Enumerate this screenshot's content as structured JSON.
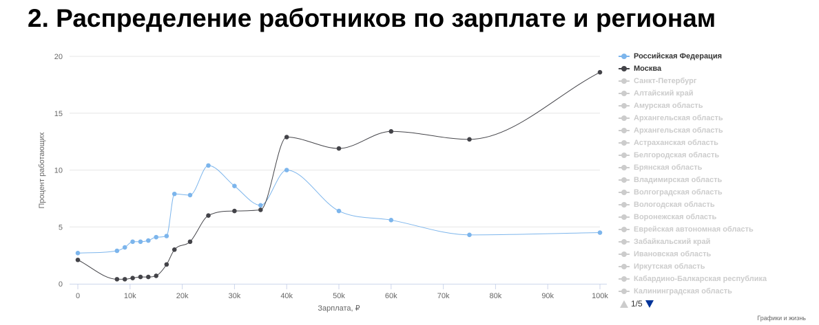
{
  "title": "2. Распределение работников по зарплате и регионам",
  "credit": "Графики и жизнь",
  "legend_nav": {
    "page": "1/5"
  },
  "chart_data": {
    "type": "line",
    "title": "",
    "xlabel": "Зарплата, ₽",
    "ylabel": "Процент работающих",
    "xlim": [
      0,
      100000
    ],
    "ylim": [
      0,
      20
    ],
    "x_ticks": [
      0,
      10000,
      20000,
      30000,
      40000,
      50000,
      60000,
      70000,
      80000,
      90000,
      100000
    ],
    "x_tick_labels": [
      "0",
      "10k",
      "20k",
      "30k",
      "40k",
      "50k",
      "60k",
      "70k",
      "80k",
      "90k",
      "100k"
    ],
    "y_ticks": [
      0,
      5,
      10,
      15,
      20
    ],
    "y_tick_labels": [
      "0",
      "5",
      "10",
      "15",
      "20"
    ],
    "grid": "horizontal",
    "legend_position": "right",
    "series": [
      {
        "name": "Российская Федерация",
        "color": "#7cb5ec",
        "visible": true,
        "x": [
          0,
          7500,
          9000,
          10500,
          12000,
          13500,
          15000,
          17000,
          18500,
          21500,
          25000,
          30000,
          35000,
          40000,
          50000,
          60000,
          75000,
          100000
        ],
        "y": [
          2.7,
          2.9,
          3.2,
          3.7,
          3.7,
          3.8,
          4.1,
          4.2,
          7.9,
          7.8,
          10.4,
          8.6,
          6.9,
          10.0,
          6.4,
          5.6,
          4.3,
          4.5
        ]
      },
      {
        "name": "Москва",
        "color": "#434348",
        "visible": true,
        "x": [
          0,
          7500,
          9000,
          10500,
          12000,
          13500,
          15000,
          17000,
          18500,
          21500,
          25000,
          30000,
          35000,
          40000,
          50000,
          60000,
          75000,
          100000
        ],
        "y": [
          2.1,
          0.4,
          0.4,
          0.5,
          0.6,
          0.6,
          0.7,
          1.7,
          3.0,
          3.7,
          6.0,
          6.4,
          6.5,
          12.9,
          11.9,
          13.4,
          12.7,
          18.6
        ]
      }
    ],
    "legend": [
      {
        "name": "Российская Федерация",
        "active": true,
        "color": "#7cb5ec"
      },
      {
        "name": "Москва",
        "active": true,
        "color": "#434348"
      },
      {
        "name": "Санкт-Петербург",
        "active": false,
        "color": "#cccccc"
      },
      {
        "name": "Алтайский край",
        "active": false,
        "color": "#cccccc"
      },
      {
        "name": "Амурская область",
        "active": false,
        "color": "#cccccc"
      },
      {
        "name": "Архангельская область",
        "active": false,
        "color": "#cccccc"
      },
      {
        "name": "Архангельская область",
        "active": false,
        "color": "#cccccc"
      },
      {
        "name": "Астраханская область",
        "active": false,
        "color": "#cccccc"
      },
      {
        "name": "Белгородская область",
        "active": false,
        "color": "#cccccc"
      },
      {
        "name": "Брянская область",
        "active": false,
        "color": "#cccccc"
      },
      {
        "name": "Владимирская область",
        "active": false,
        "color": "#cccccc"
      },
      {
        "name": "Волгоградская область",
        "active": false,
        "color": "#cccccc"
      },
      {
        "name": "Вологодская область",
        "active": false,
        "color": "#cccccc"
      },
      {
        "name": "Воронежская область",
        "active": false,
        "color": "#cccccc"
      },
      {
        "name": "Еврейская автономная область",
        "active": false,
        "color": "#cccccc"
      },
      {
        "name": "Забайкальский край",
        "active": false,
        "color": "#cccccc"
      },
      {
        "name": "Ивановская область",
        "active": false,
        "color": "#cccccc"
      },
      {
        "name": "Иркутская область",
        "active": false,
        "color": "#cccccc"
      },
      {
        "name": "Кабардино-Балкарская республика",
        "active": false,
        "color": "#cccccc"
      },
      {
        "name": "Калининградская область",
        "active": false,
        "color": "#cccccc"
      }
    ]
  }
}
